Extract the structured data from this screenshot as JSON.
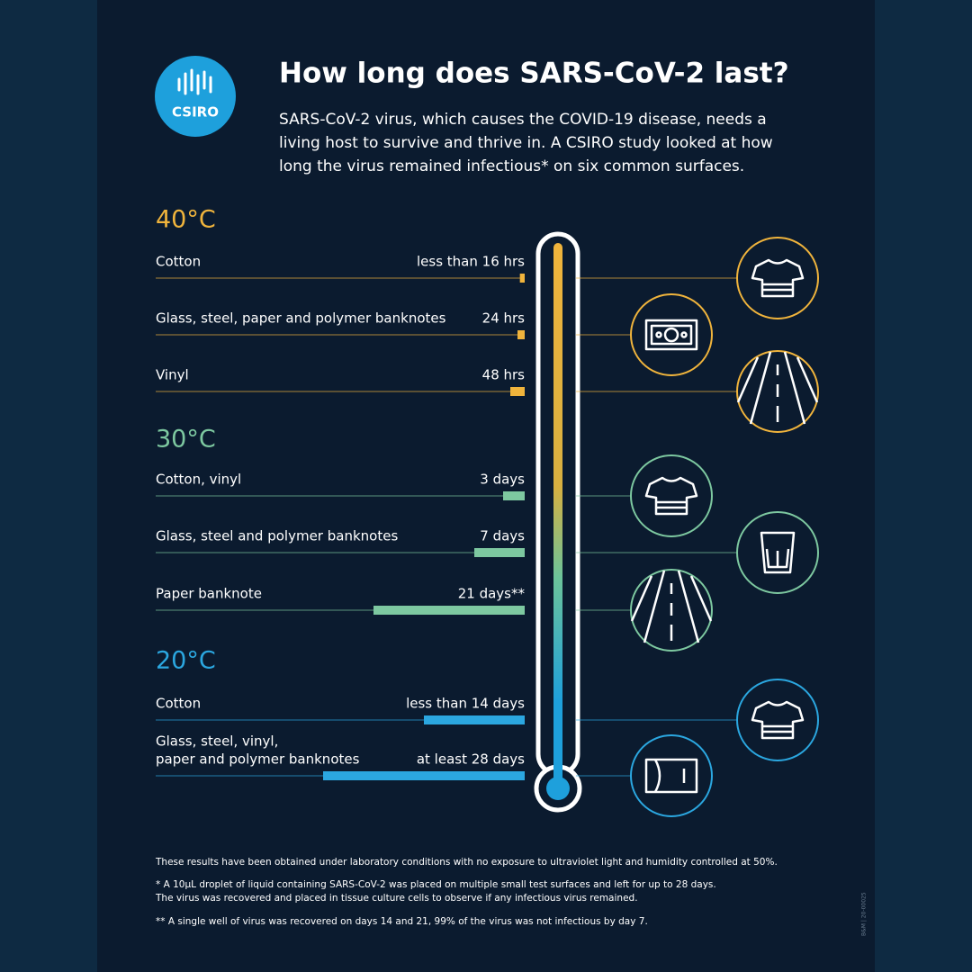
{
  "header": {
    "logo": "CSIRO",
    "title": "How long does SARS-CoV-2 last?",
    "intro": [
      "SARS-CoV-2 virus, which causes the COVID-19 disease, needs a",
      "living host to survive and thrive in. A CSIRO study looked at how",
      "long the virus remained infectious* on six common surfaces."
    ]
  },
  "sections": [
    {
      "heading": "40°C",
      "items": [
        {
          "label_lines": [
            "Cotton"
          ],
          "duration": "less than 16 hrs",
          "hours": 16
        },
        {
          "label_lines": [
            "Glass, steel, paper and polymer banknotes"
          ],
          "duration": "24 hrs",
          "hours": 24
        },
        {
          "label_lines": [
            "Vinyl"
          ],
          "duration": "48 hrs",
          "hours": 48
        }
      ]
    },
    {
      "heading": "30°C",
      "items": [
        {
          "label_lines": [
            "Cotton, vinyl"
          ],
          "duration": "3 days",
          "hours": 72
        },
        {
          "label_lines": [
            "Glass, steel and polymer banknotes"
          ],
          "duration": "7 days",
          "hours": 168
        },
        {
          "label_lines": [
            "Paper banknote"
          ],
          "duration": "21 days**",
          "hours": 504
        }
      ]
    },
    {
      "heading": "20°C",
      "items": [
        {
          "label_lines": [
            "Cotton"
          ],
          "duration": "less than 14 days",
          "hours": 336
        },
        {
          "label_lines": [
            "Glass, steel, vinyl,",
            "paper and polymer banknotes"
          ],
          "duration": "at least 28 days",
          "hours": 672
        }
      ]
    }
  ],
  "footnotes": [
    "These results have been obtained under laboratory conditions with no exposure to ultraviolet light and humidity controlled at 50%.",
    "* A 10µL droplet of liquid containing SARS-CoV-2 was placed on multiple small test surfaces and left for up to 28 days.",
    "The virus was recovered and placed in tissue culture cells to observe if any infectious virus remained.",
    "** A single well of virus was recovered on days 14 and 21, 99% of the virus was not infectious by day 7."
  ],
  "code": "B&M | 20-00025"
}
